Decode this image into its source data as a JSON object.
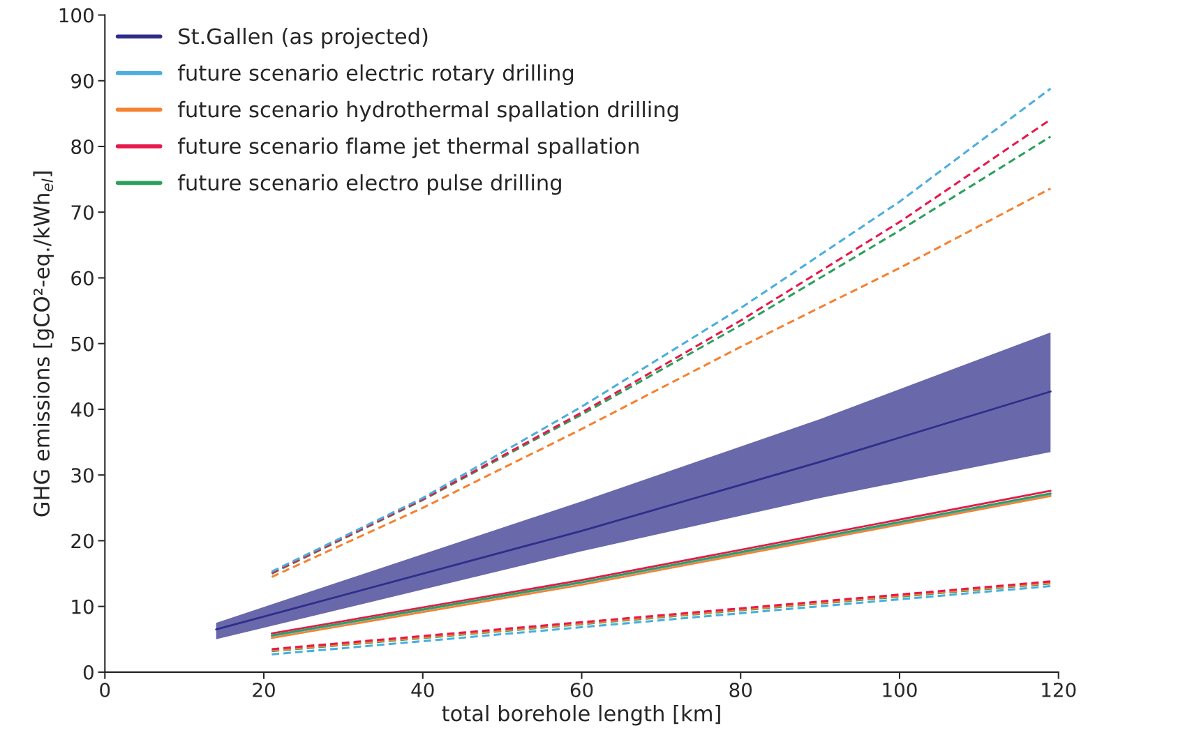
{
  "chart_data": {
    "type": "line",
    "xlabel": "total borehole length [km]",
    "ylabel": "GHG emissions [gCO²-eq./kWh$_{el}$]",
    "xlim": [
      0,
      120
    ],
    "ylim": [
      0,
      100
    ],
    "xticks": [
      0,
      20,
      40,
      60,
      80,
      100,
      120
    ],
    "yticks": [
      0,
      10,
      20,
      30,
      40,
      50,
      60,
      70,
      80,
      90,
      100
    ],
    "grid": false,
    "legend": "top left",
    "series": [
      {
        "name": "St.Gallen (as projected)",
        "color": "#2e2e8a",
        "line_style": "solid",
        "x": [
          14,
          60,
          90,
          119
        ],
        "values": [
          6.5,
          21.5,
          32.0,
          42.7
        ],
        "lower": [
          5.0,
          18.4,
          26.5,
          33.5
        ],
        "upper": [
          7.5,
          26.0,
          38.5,
          51.7
        ]
      },
      {
        "name": "future scenario electric rotary drilling",
        "color": "#4aaede",
        "line_style": "solid",
        "x": [
          21,
          60,
          119
        ],
        "values": [
          5.5,
          13.6,
          27.0
        ]
      },
      {
        "name": "future scenario hydrothermal spallation drilling",
        "color": "#f58231",
        "line_style": "solid",
        "x": [
          21,
          60,
          119
        ],
        "values": [
          5.2,
          13.3,
          26.8
        ]
      },
      {
        "name": "future scenario flame jet thermal spallation",
        "color": "#e6194b",
        "line_style": "solid",
        "x": [
          21,
          60,
          119
        ],
        "values": [
          5.9,
          14.0,
          27.6
        ]
      },
      {
        "name": "future scenario electro pulse drilling",
        "color": "#2ca05a",
        "line_style": "solid",
        "x": [
          21,
          60,
          119
        ],
        "values": [
          5.6,
          13.7,
          27.2
        ]
      },
      {
        "color": "#f58231",
        "line_style": "dashed",
        "x": [
          21,
          40,
          60,
          80,
          100,
          119
        ],
        "values": [
          14.5,
          25,
          37,
          49.5,
          61.5,
          73.6
        ]
      },
      {
        "color": "#2ca05a",
        "line_style": "dashed",
        "x": [
          21,
          40,
          60,
          80,
          100,
          119
        ],
        "values": [
          15,
          26.2,
          39.2,
          52.8,
          67.2,
          81.5
        ]
      },
      {
        "color": "#e6194b",
        "line_style": "dashed",
        "x": [
          21,
          40,
          60,
          80,
          100,
          119
        ],
        "values": [
          15.1,
          26.3,
          39.5,
          53.5,
          68.5,
          84.1
        ]
      },
      {
        "color": "#4aaede",
        "line_style": "dashed",
        "x": [
          21,
          40,
          60,
          80,
          100,
          119
        ],
        "values": [
          15.3,
          26.5,
          40.4,
          55.4,
          71.6,
          88.8
        ]
      },
      {
        "color": "#4aaede",
        "line_style": "dashed",
        "x": [
          21,
          119
        ],
        "values": [
          2.7,
          13.1
        ]
      },
      {
        "color": "#2ca05a",
        "line_style": "dashed",
        "x": [
          21,
          119
        ],
        "values": [
          3.2,
          13.5
        ]
      },
      {
        "color": "#f58231",
        "line_style": "dashed",
        "x": [
          21,
          119
        ],
        "values": [
          3.3,
          13.6
        ]
      },
      {
        "color": "#e6194b",
        "line_style": "dashed",
        "x": [
          21,
          119
        ],
        "values": [
          3.5,
          13.8
        ]
      }
    ]
  }
}
